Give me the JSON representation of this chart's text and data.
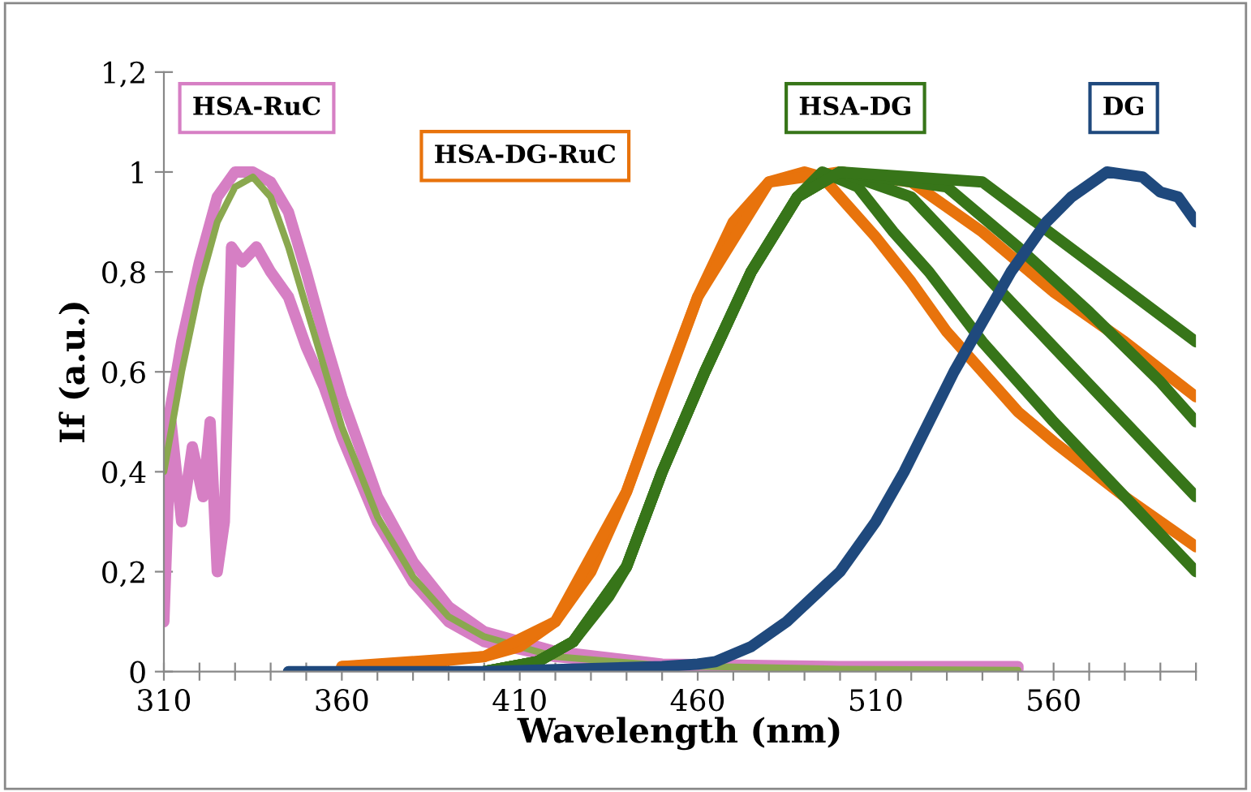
{
  "chart_data": {
    "type": "line",
    "xlabel": "Wavelength (nm)",
    "ylabel": "If (a.u.)",
    "xlim": [
      310,
      600
    ],
    "ylim": [
      0,
      1.2
    ],
    "xticks": [
      310,
      {
        "value": 320,
        "label": null
      },
      {
        "value": 330,
        "label": null
      },
      {
        "value": 340,
        "label": null
      },
      {
        "value": 350,
        "label": null
      },
      360,
      {
        "value": 370,
        "label": null
      },
      {
        "value": 380,
        "label": null
      },
      {
        "value": 390,
        "label": null
      },
      {
        "value": 400,
        "label": null
      },
      410,
      {
        "value": 420,
        "label": null
      },
      {
        "value": 430,
        "label": null
      },
      {
        "value": 440,
        "label": null
      },
      {
        "value": 450,
        "label": null
      },
      460,
      {
        "value": 470,
        "label": null
      },
      {
        "value": 480,
        "label": null
      },
      {
        "value": 490,
        "label": null
      },
      {
        "value": 500,
        "label": null
      },
      510,
      {
        "value": 520,
        "label": null
      },
      {
        "value": 530,
        "label": null
      },
      {
        "value": 540,
        "label": null
      },
      {
        "value": 550,
        "label": null
      },
      560,
      {
        "value": 570,
        "label": null
      },
      {
        "value": 580,
        "label": null
      },
      {
        "value": 590,
        "label": null
      },
      {
        "value": 600,
        "label": null
      }
    ],
    "yticks": [
      0,
      {
        "value": 0.2,
        "label": "0,2"
      },
      {
        "value": 0.4,
        "label": "0,4"
      },
      {
        "value": 0.6,
        "label": "0,6"
      },
      {
        "value": 0.8,
        "label": "0,8"
      },
      1,
      {
        "value": 1.2,
        "label": "1,2"
      }
    ],
    "grid": false,
    "legend": false,
    "marker": "none",
    "line_style": "solid",
    "series": [
      {
        "color": "#d67fc4",
        "x": [
          310,
          312,
          315,
          318,
          321,
          323,
          325,
          327,
          329,
          332,
          336,
          340,
          345,
          350,
          355,
          360,
          370,
          380,
          390,
          400,
          420,
          450,
          500,
          550
        ],
        "values": [
          0.1,
          0.5,
          0.3,
          0.45,
          0.35,
          0.5,
          0.2,
          0.3,
          0.85,
          0.82,
          0.85,
          0.8,
          0.75,
          0.65,
          0.57,
          0.47,
          0.3,
          0.18,
          0.1,
          0.06,
          0.03,
          0.01,
          0.005,
          0.005
        ]
      },
      {
        "name": "HSA-RuC",
        "color": "#d67fc4",
        "x": [
          310,
          315,
          320,
          325,
          330,
          335,
          340,
          345,
          350,
          355,
          360,
          370,
          380,
          390,
          400,
          420,
          450,
          500,
          550
        ],
        "values": [
          0.45,
          0.66,
          0.82,
          0.95,
          1.0,
          1.0,
          0.98,
          0.92,
          0.8,
          0.67,
          0.55,
          0.35,
          0.22,
          0.13,
          0.08,
          0.04,
          0.015,
          0.01,
          0.01
        ]
      },
      {
        "color": "#8aa84f",
        "x": [
          310,
          315,
          320,
          325,
          330,
          335,
          340,
          345,
          350,
          355,
          360,
          370,
          380,
          390,
          400,
          420,
          450,
          500,
          550
        ],
        "values": [
          0.4,
          0.6,
          0.77,
          0.9,
          0.97,
          0.99,
          0.95,
          0.85,
          0.73,
          0.61,
          0.49,
          0.31,
          0.19,
          0.11,
          0.07,
          0.03,
          0.012,
          0.005,
          0.003
        ]
      },
      {
        "name": "HSA-DG-RuC",
        "color": "#e8730c",
        "x": [
          360,
          380,
          400,
          410,
          420,
          430,
          440,
          450,
          460,
          470,
          480,
          490,
          495,
          510,
          520,
          530,
          540,
          550,
          560,
          580,
          600
        ],
        "values": [
          0.01,
          0.015,
          0.03,
          0.05,
          0.1,
          0.2,
          0.36,
          0.56,
          0.75,
          0.9,
          0.98,
          1.0,
          0.99,
          0.87,
          0.78,
          0.68,
          0.6,
          0.52,
          0.46,
          0.35,
          0.25
        ]
      },
      {
        "color": "#e8730c",
        "x": [
          360,
          400,
          420,
          440,
          460,
          480,
          500,
          520,
          540,
          560,
          580,
          600
        ],
        "values": [
          0.01,
          0.03,
          0.1,
          0.36,
          0.75,
          0.98,
          1.0,
          0.98,
          0.88,
          0.76,
          0.66,
          0.55
        ]
      },
      {
        "name": "HSA-DG",
        "color": "#377519",
        "x": [
          400,
          415,
          425,
          435,
          440,
          450,
          462,
          475,
          488,
          495,
          505,
          515,
          525,
          540,
          560,
          580,
          600
        ],
        "values": [
          0.0,
          0.02,
          0.06,
          0.15,
          0.21,
          0.4,
          0.6,
          0.8,
          0.95,
          1.0,
          0.97,
          0.88,
          0.8,
          0.66,
          0.5,
          0.35,
          0.2
        ]
      },
      {
        "color": "#377519",
        "x": [
          400,
          415,
          425,
          440,
          450,
          462,
          475,
          488,
          500,
          520,
          540,
          560,
          580,
          600
        ],
        "values": [
          0.0,
          0.02,
          0.06,
          0.21,
          0.4,
          0.6,
          0.8,
          0.95,
          1.0,
          0.95,
          0.8,
          0.65,
          0.5,
          0.35
        ]
      },
      {
        "color": "#377519",
        "x": [
          400,
          415,
          425,
          440,
          450,
          462,
          475,
          488,
          500,
          530,
          550,
          570,
          590,
          600
        ],
        "values": [
          0.0,
          0.02,
          0.06,
          0.21,
          0.4,
          0.6,
          0.8,
          0.95,
          1.0,
          0.97,
          0.85,
          0.72,
          0.58,
          0.5
        ]
      },
      {
        "color": "#377519",
        "x": [
          400,
          415,
          425,
          440,
          450,
          462,
          475,
          488,
          500,
          540,
          555,
          570,
          585,
          600
        ],
        "values": [
          0.0,
          0.02,
          0.06,
          0.21,
          0.4,
          0.6,
          0.8,
          0.95,
          1.0,
          0.98,
          0.9,
          0.82,
          0.74,
          0.66
        ]
      },
      {
        "name": "DG",
        "color": "#1f497d",
        "x": [
          345,
          400,
          450,
          460,
          465,
          475,
          485,
          500,
          510,
          518,
          532,
          548,
          558,
          565,
          575,
          585,
          590,
          595,
          600
        ],
        "values": [
          0.0,
          0.0,
          0.01,
          0.015,
          0.02,
          0.05,
          0.1,
          0.2,
          0.3,
          0.4,
          0.6,
          0.8,
          0.9,
          0.95,
          1.0,
          0.99,
          0.96,
          0.95,
          0.9
        ]
      }
    ]
  }
}
